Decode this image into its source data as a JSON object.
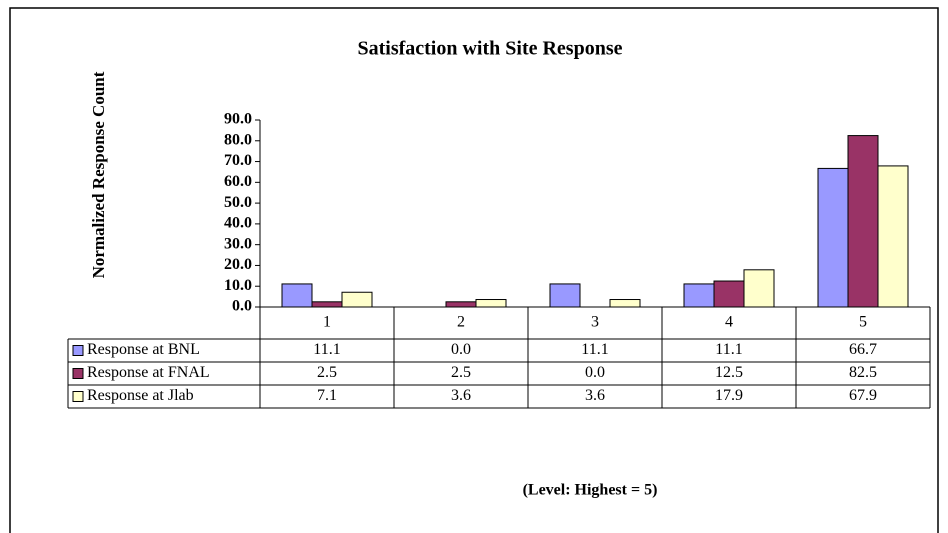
{
  "chart_data": {
    "type": "bar",
    "title": "Satisfaction with Site Response",
    "y_label": "Normalized Response Count",
    "x_label": "(Level: Highest = 5)",
    "categories": [
      "1",
      "2",
      "3",
      "4",
      "5"
    ],
    "series": [
      {
        "name": "Response at BNL",
        "color": "#9999ff",
        "values": [
          11.1,
          0.0,
          11.1,
          11.1,
          66.7
        ],
        "value_labels": [
          "11.1",
          "0.0",
          "11.1",
          "11.1",
          "66.7"
        ]
      },
      {
        "name": "Response at FNAL",
        "color": "#993366",
        "values": [
          2.5,
          2.5,
          0.0,
          12.5,
          82.5
        ],
        "value_labels": [
          "2.5",
          "2.5",
          "0.0",
          "12.5",
          "82.5"
        ]
      },
      {
        "name": "Response at Jlab",
        "color": "#ffffcc",
        "values": [
          7.1,
          3.6,
          3.6,
          17.9,
          67.9
        ],
        "value_labels": [
          "7.1",
          "3.6",
          "3.6",
          "17.9",
          "67.9"
        ]
      }
    ],
    "ylim": [
      0,
      90
    ],
    "yticks": [
      {
        "value": 0,
        "label": "0.0"
      },
      {
        "value": 10,
        "label": "10.0"
      },
      {
        "value": 20,
        "label": "20.0"
      },
      {
        "value": 30,
        "label": "30.0"
      },
      {
        "value": 40,
        "label": "40.0"
      },
      {
        "value": 50,
        "label": "50.0"
      },
      {
        "value": 60,
        "label": "60.0"
      },
      {
        "value": 70,
        "label": "70.0"
      },
      {
        "value": 80,
        "label": "80.0"
      },
      {
        "value": 90,
        "label": "90.0"
      }
    ],
    "grid": false
  }
}
